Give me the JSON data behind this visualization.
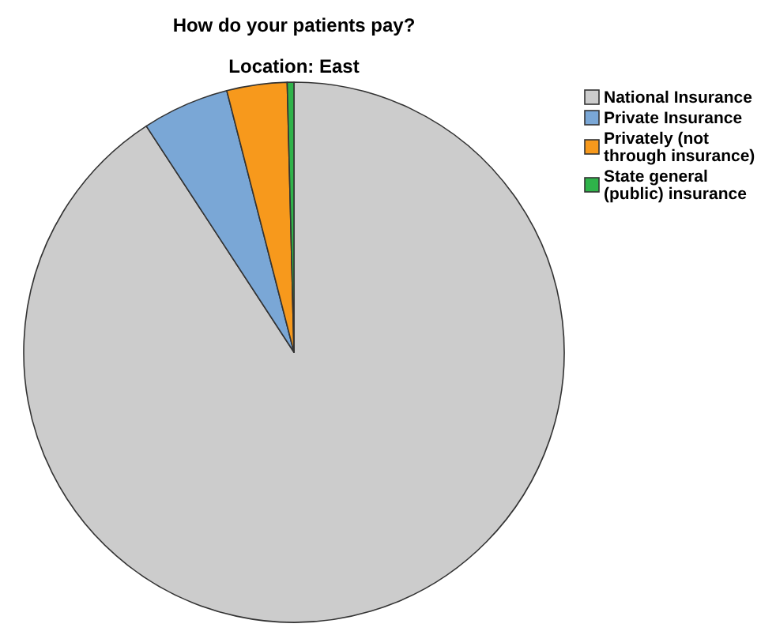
{
  "chart_data": {
    "type": "pie",
    "title": "How do your patients pay?",
    "subtitle": "Location: East",
    "categories": [
      "National Insurance",
      "Private Insurance",
      "Privately (not through insurance)",
      "State general (public) insurance"
    ],
    "values": [
      90.8,
      5.2,
      3.6,
      0.4
    ],
    "colors": [
      "#cccccc",
      "#7aa7d6",
      "#f7991c",
      "#2fb34a"
    ],
    "legend": "top right"
  }
}
